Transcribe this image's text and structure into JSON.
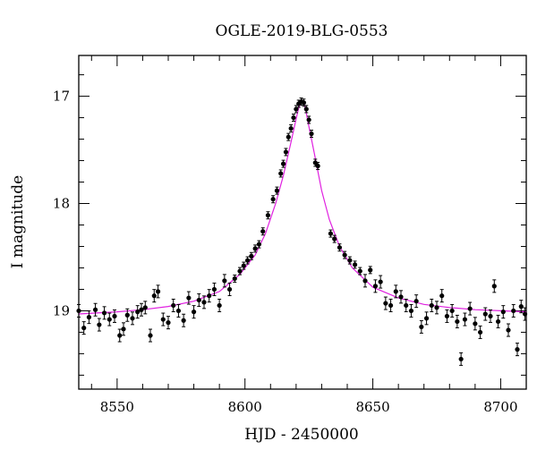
{
  "chart_data": {
    "type": "scatter",
    "title": "OGLE-2019-BLG-0553",
    "xlabel": "HJD - 2450000",
    "ylabel": "I magnitude",
    "xlim": [
      8535,
      8710
    ],
    "ylim": [
      19.73,
      16.62
    ],
    "y_inverted": true,
    "x_ticks": [
      8550,
      8600,
      8650,
      8700
    ],
    "y_ticks": [
      17,
      18,
      19
    ],
    "point_color": "#000000",
    "model_color": "#e020e0",
    "model": {
      "name": "",
      "t0": 8622.3,
      "baseline": 19.06,
      "peak": 17.04,
      "curve": [
        [
          8535,
          19.03
        ],
        [
          8550,
          19.01
        ],
        [
          8560,
          18.99
        ],
        [
          8570,
          18.96
        ],
        [
          8580,
          18.91
        ],
        [
          8590,
          18.82
        ],
        [
          8598,
          18.66
        ],
        [
          8604,
          18.48
        ],
        [
          8608,
          18.28
        ],
        [
          8612,
          18.0
        ],
        [
          8615,
          17.74
        ],
        [
          8618,
          17.43
        ],
        [
          8620,
          17.21
        ],
        [
          8621,
          17.11
        ],
        [
          8622.3,
          17.04
        ],
        [
          8623.5,
          17.1
        ],
        [
          8625,
          17.28
        ],
        [
          8627,
          17.52
        ],
        [
          8630,
          17.88
        ],
        [
          8633,
          18.15
        ],
        [
          8637,
          18.4
        ],
        [
          8642,
          18.6
        ],
        [
          8650,
          18.78
        ],
        [
          8660,
          18.88
        ],
        [
          8670,
          18.94
        ],
        [
          8680,
          18.97
        ],
        [
          8690,
          18.99
        ],
        [
          8700,
          19.0
        ],
        [
          8710,
          19.01
        ]
      ]
    },
    "points": [
      [
        8535.0,
        19.0
      ],
      [
        8537.0,
        19.16
      ],
      [
        8539.0,
        19.06
      ],
      [
        8541.5,
        18.99
      ],
      [
        8543.0,
        19.13
      ],
      [
        8545.0,
        19.02
      ],
      [
        8547.0,
        19.08
      ],
      [
        8549.0,
        19.05
      ],
      [
        8551.0,
        19.23
      ],
      [
        8552.5,
        19.17
      ],
      [
        8554.0,
        19.04
      ],
      [
        8556.0,
        19.07
      ],
      [
        8558.0,
        19.01
      ],
      [
        8559.5,
        18.99
      ],
      [
        8561.0,
        18.97
      ],
      [
        8563.0,
        19.23
      ],
      [
        8564.5,
        18.86
      ],
      [
        8566.0,
        18.82
      ],
      [
        8568.0,
        19.08
      ],
      [
        8570.0,
        19.11
      ],
      [
        8572.0,
        18.95
      ],
      [
        8574.0,
        19.0
      ],
      [
        8576.0,
        19.09
      ],
      [
        8578.0,
        18.88
      ],
      [
        8580.0,
        19.01
      ],
      [
        8582.0,
        18.9
      ],
      [
        8584.0,
        18.92
      ],
      [
        8586.0,
        18.86
      ],
      [
        8588.0,
        18.8
      ],
      [
        8590.0,
        18.95
      ],
      [
        8592.0,
        18.72
      ],
      [
        8594.0,
        18.8
      ],
      [
        8596.0,
        18.7
      ],
      [
        8598.0,
        18.63
      ],
      [
        8599.5,
        18.58
      ],
      [
        8601.0,
        18.53
      ],
      [
        8602.5,
        18.49
      ],
      [
        8604.0,
        18.42
      ],
      [
        8605.5,
        18.38
      ],
      [
        8607.0,
        18.26
      ],
      [
        8609.0,
        18.11
      ],
      [
        8611.0,
        17.96
      ],
      [
        8612.5,
        17.88
      ],
      [
        8614.0,
        17.72
      ],
      [
        8615.0,
        17.63
      ],
      [
        8616.0,
        17.52
      ],
      [
        8617.0,
        17.38
      ],
      [
        8618.0,
        17.3
      ],
      [
        8619.0,
        17.2
      ],
      [
        8620.0,
        17.12
      ],
      [
        8621.0,
        17.07
      ],
      [
        8622.0,
        17.05
      ],
      [
        8623.0,
        17.06
      ],
      [
        8624.0,
        17.12
      ],
      [
        8625.0,
        17.22
      ],
      [
        8626.0,
        17.35
      ],
      [
        8627.5,
        17.62
      ],
      [
        8628.5,
        17.65
      ],
      [
        8633.5,
        18.28
      ],
      [
        8635.0,
        18.33
      ],
      [
        8637.0,
        18.41
      ],
      [
        8639.0,
        18.48
      ],
      [
        8641.0,
        18.53
      ],
      [
        8643.0,
        18.57
      ],
      [
        8645.0,
        18.63
      ],
      [
        8647.0,
        18.72
      ],
      [
        8649.0,
        18.62
      ],
      [
        8651.0,
        18.77
      ],
      [
        8653.0,
        18.73
      ],
      [
        8655.0,
        18.93
      ],
      [
        8657.0,
        18.95
      ],
      [
        8659.0,
        18.82
      ],
      [
        8661.0,
        18.87
      ],
      [
        8663.0,
        18.95
      ],
      [
        8665.0,
        19.0
      ],
      [
        8667.0,
        18.91
      ],
      [
        8669.0,
        19.15
      ],
      [
        8671.0,
        19.07
      ],
      [
        8673.0,
        18.95
      ],
      [
        8675.0,
        18.97
      ],
      [
        8677.0,
        18.86
      ],
      [
        8679.0,
        19.05
      ],
      [
        8681.0,
        19.0
      ],
      [
        8683.0,
        19.1
      ],
      [
        8684.5,
        19.45
      ],
      [
        8686.0,
        19.08
      ],
      [
        8688.0,
        18.98
      ],
      [
        8690.0,
        19.12
      ],
      [
        8692.0,
        19.2
      ],
      [
        8694.0,
        19.03
      ],
      [
        8696.0,
        19.05
      ],
      [
        8697.5,
        18.77
      ],
      [
        8699.0,
        19.1
      ],
      [
        8701.0,
        19.01
      ],
      [
        8703.0,
        19.18
      ],
      [
        8705.0,
        19.0
      ],
      [
        8706.5,
        19.36
      ],
      [
        8708.0,
        18.96
      ],
      [
        8709.5,
        19.03
      ]
    ]
  }
}
